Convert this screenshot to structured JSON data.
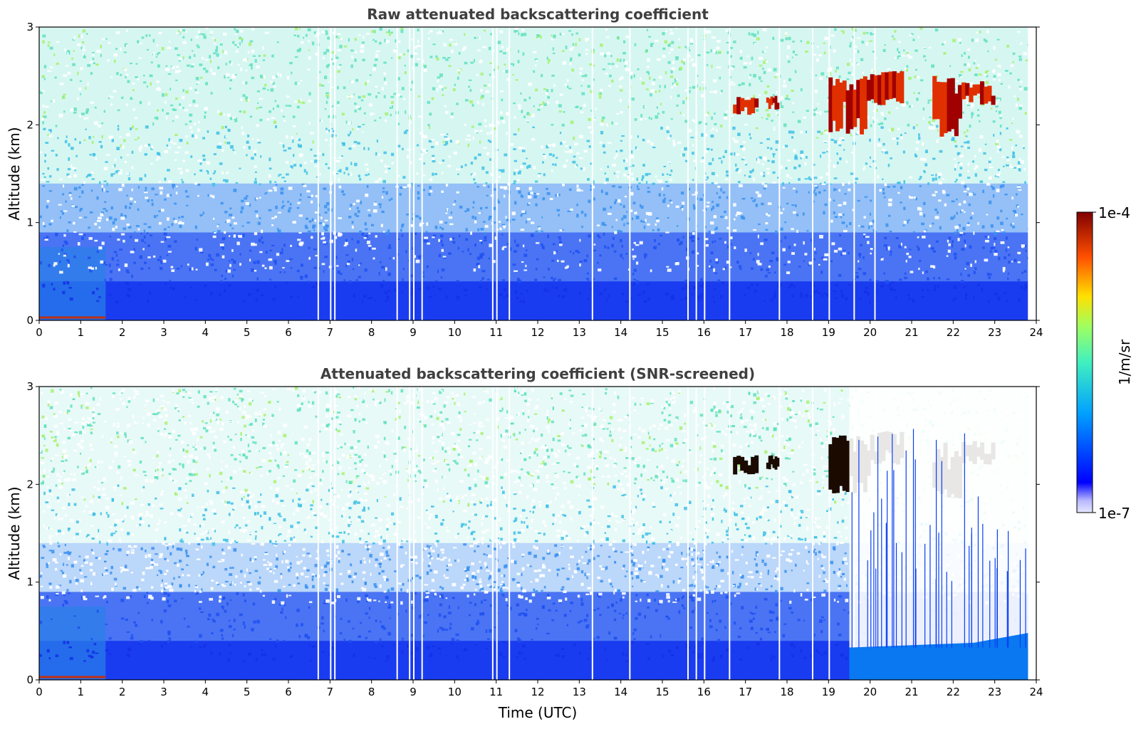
{
  "chart_data": [
    {
      "type": "heatmap",
      "title": "Raw attenuated backscattering coefficient",
      "xlabel": "",
      "ylabel": "Altitude (km)",
      "xlim": [
        0,
        24
      ],
      "ylim": [
        0,
        3
      ],
      "xticks": [
        "0",
        "1",
        "2",
        "3",
        "4",
        "5",
        "6",
        "7",
        "8",
        "9",
        "10",
        "11",
        "12",
        "13",
        "14",
        "15",
        "16",
        "17",
        "18",
        "19",
        "20",
        "21",
        "22",
        "23",
        "24"
      ],
      "yticks": [
        "0",
        "1",
        "2",
        "3"
      ],
      "data_end_time": 23.8,
      "near_surface_aerosol_layer_top_km": 0.05,
      "cloud_layers": [
        {
          "start": 16.7,
          "end": 17.3,
          "base_km": 2.1,
          "top_km": 2.3
        },
        {
          "start": 17.5,
          "end": 17.8,
          "base_km": 2.15,
          "top_km": 2.3
        },
        {
          "start": 19.0,
          "end": 20.0,
          "base_km": 1.9,
          "top_km": 2.5
        },
        {
          "start": 20.0,
          "end": 20.8,
          "base_km": 2.2,
          "top_km": 2.55
        },
        {
          "start": 21.5,
          "end": 22.2,
          "base_km": 1.85,
          "top_km": 2.5
        },
        {
          "start": 22.2,
          "end": 23.0,
          "base_km": 2.2,
          "top_km": 2.45
        }
      ],
      "data_gaps_utc": [
        6.7,
        7.0,
        7.1,
        8.6,
        8.9,
        9.0,
        9.2,
        10.9,
        11.0,
        11.3,
        13.3,
        14.2,
        15.6,
        15.8,
        16.0,
        16.6,
        17.8,
        18.6,
        19.0,
        19.6,
        20.1
      ]
    },
    {
      "type": "heatmap",
      "title": "Attenuated backscattering coefficient (SNR-screened)",
      "xlabel": "Time (UTC)",
      "ylabel": "Altitude (km)",
      "xlim": [
        0,
        24
      ],
      "ylim": [
        0,
        3
      ],
      "xticks": [
        "0",
        "1",
        "2",
        "3",
        "4",
        "5",
        "6",
        "7",
        "8",
        "9",
        "10",
        "11",
        "12",
        "13",
        "14",
        "15",
        "16",
        "17",
        "18",
        "19",
        "20",
        "21",
        "22",
        "23",
        "24"
      ],
      "yticks": [
        "0",
        "1",
        "2",
        "3"
      ],
      "data_end_time": 23.8,
      "screened_layer_top_km_late": [
        0.33,
        0.48
      ],
      "colorbar": {
        "label": "1/m/sr",
        "min_label": "1e-7",
        "max_label": "1e-4",
        "scale": "log",
        "colormap": "jet"
      }
    }
  ]
}
